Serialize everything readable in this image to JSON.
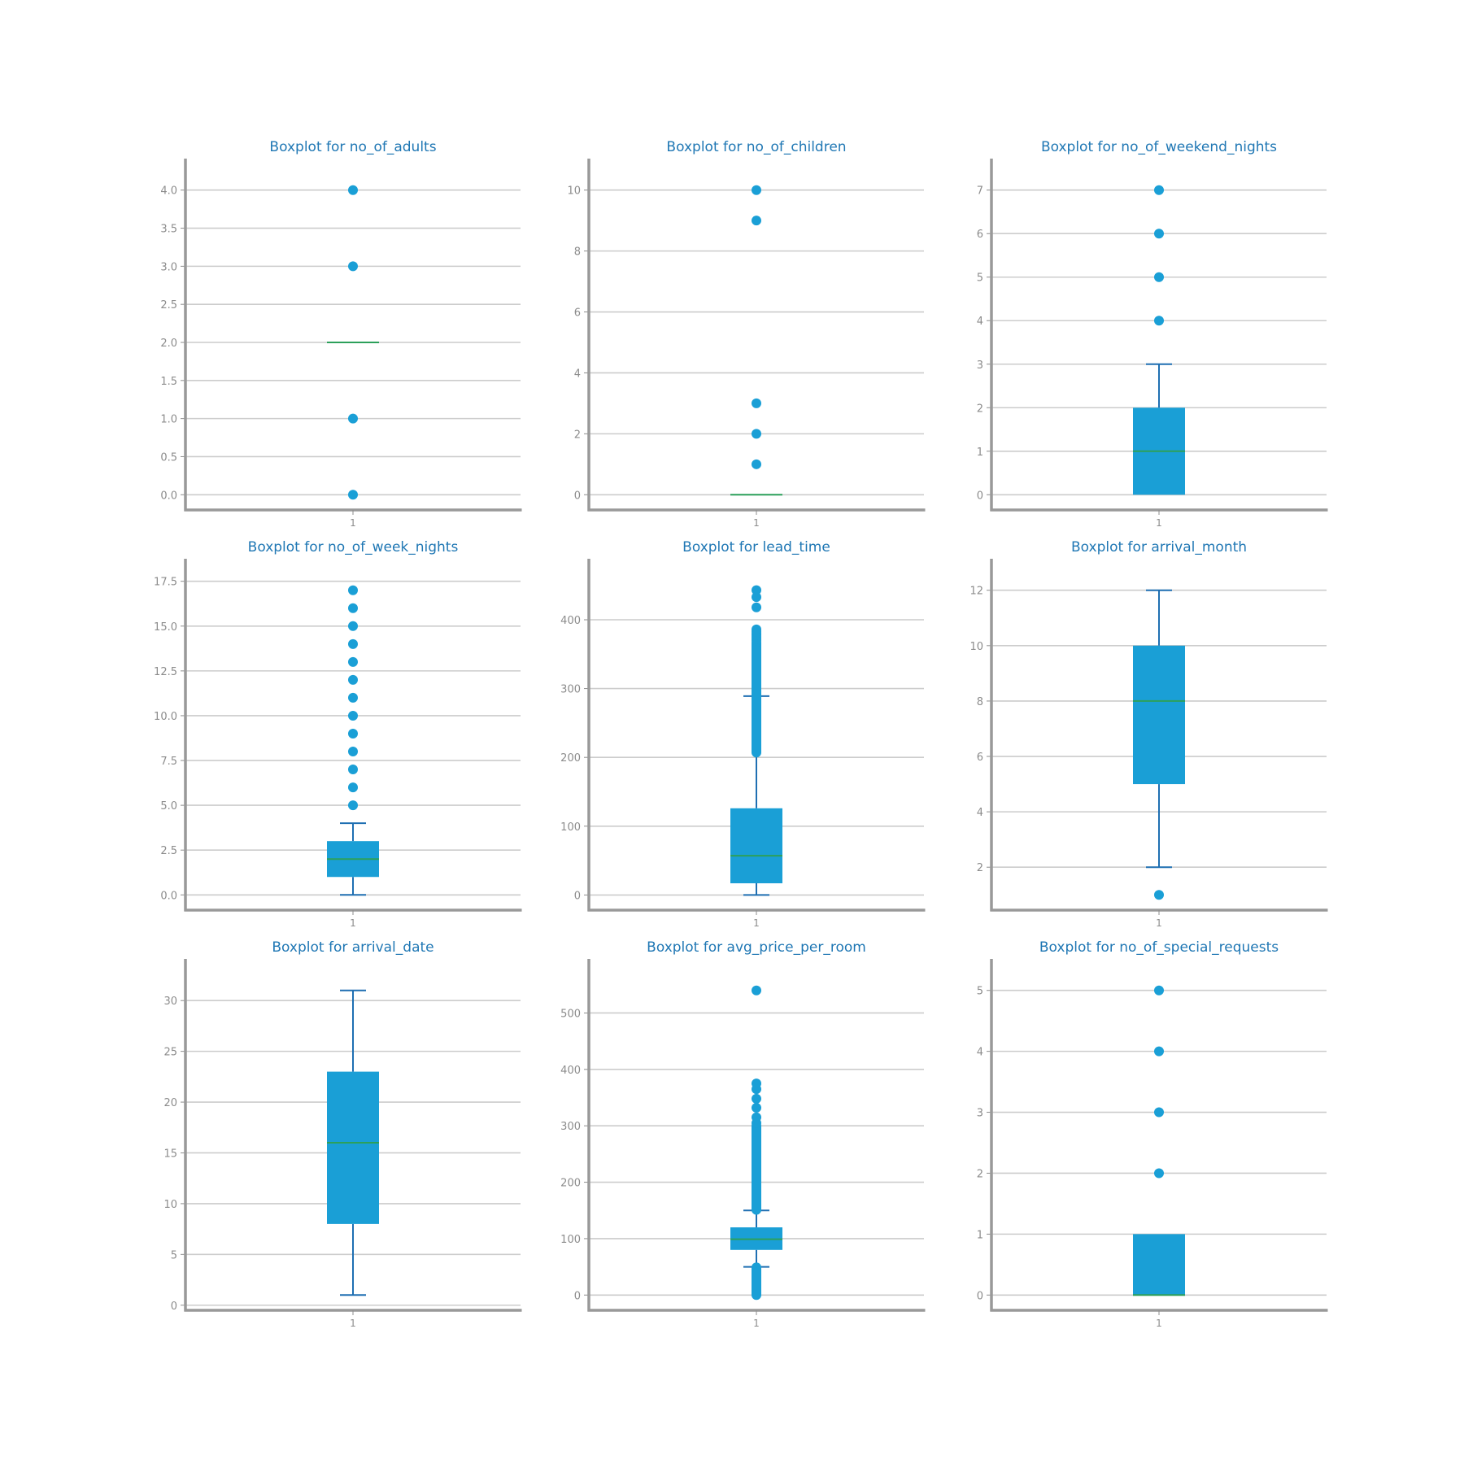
{
  "colors": {
    "title": "#1a72b8",
    "box": "#1a9fd6",
    "whisker": "#1f6fb2",
    "median": "#2ca05a",
    "grid": "#cccccc",
    "spine": "#999999",
    "tick_label": "#8c8c8c"
  },
  "chart_data": [
    {
      "type": "boxplot",
      "title": "Boxplot for no_of_adults",
      "category": "1",
      "ylim": [
        -0.2,
        4.2
      ],
      "yticks": [
        0.0,
        0.5,
        1.0,
        1.5,
        2.0,
        2.5,
        3.0,
        3.5,
        4.0
      ],
      "ytick_labels": [
        "0.0",
        "0.5",
        "1.0",
        "1.5",
        "2.0",
        "2.5",
        "3.0",
        "3.5",
        "4.0"
      ],
      "grid": true,
      "whisker_low": 2,
      "q1": 2,
      "median": 2,
      "q3": 2,
      "whisker_high": 2,
      "outliers": [
        0,
        1,
        3,
        4
      ]
    },
    {
      "type": "boxplot",
      "title": "Boxplot for no_of_children",
      "category": "1",
      "ylim": [
        -0.5,
        10.5
      ],
      "yticks": [
        0,
        2,
        4,
        6,
        8,
        10
      ],
      "ytick_labels": [
        "0",
        "2",
        "4",
        "6",
        "8",
        "10"
      ],
      "grid": true,
      "whisker_low": 0,
      "q1": 0,
      "median": 0,
      "q3": 0,
      "whisker_high": 0,
      "outliers": [
        1,
        2,
        3,
        9,
        10
      ]
    },
    {
      "type": "boxplot",
      "title": "Boxplot for no_of_weekend_nights",
      "category": "1",
      "ylim": [
        -0.35,
        7.35
      ],
      "yticks": [
        0,
        1,
        2,
        3,
        4,
        5,
        6,
        7
      ],
      "ytick_labels": [
        "0",
        "1",
        "2",
        "3",
        "4",
        "5",
        "6",
        "7"
      ],
      "grid": true,
      "whisker_low": 0,
      "q1": 0,
      "median": 1,
      "q3": 2,
      "whisker_high": 3,
      "outliers": [
        4,
        5,
        6,
        7
      ]
    },
    {
      "type": "boxplot",
      "title": "Boxplot for no_of_week_nights",
      "category": "1",
      "ylim": [
        -0.85,
        17.85
      ],
      "yticks": [
        0.0,
        2.5,
        5.0,
        7.5,
        10.0,
        12.5,
        15.0,
        17.5
      ],
      "ytick_labels": [
        "0.0",
        "2.5",
        "5.0",
        "7.5",
        "10.0",
        "12.5",
        "15.0",
        "17.5"
      ],
      "grid": true,
      "whisker_low": 0,
      "q1": 1,
      "median": 2,
      "q3": 3,
      "whisker_high": 4,
      "outliers": [
        5,
        6,
        7,
        8,
        9,
        10,
        11,
        12,
        13,
        14,
        15,
        16,
        17
      ]
    },
    {
      "type": "boxplot",
      "title": "Boxplot for lead_time",
      "category": "1",
      "ylim": [
        -22,
        465
      ],
      "yticks": [
        0,
        100,
        200,
        300,
        400
      ],
      "ytick_labels": [
        "0",
        "100",
        "200",
        "300",
        "400"
      ],
      "grid": true,
      "whisker_low": 0,
      "q1": 17,
      "median": 57,
      "q3": 126,
      "whisker_high": 289,
      "outliers_dense_range": [
        207,
        365
      ],
      "outliers": [
        367,
        370,
        372,
        375,
        378,
        380,
        383,
        386,
        418,
        433,
        443
      ]
    },
    {
      "type": "boxplot",
      "title": "Boxplot for arrival_month",
      "category": "1",
      "ylim": [
        0.45,
        12.55
      ],
      "yticks": [
        2,
        4,
        6,
        8,
        10,
        12
      ],
      "ytick_labels": [
        "2",
        "4",
        "6",
        "8",
        "10",
        "12"
      ],
      "grid": true,
      "whisker_low": 2,
      "q1": 5,
      "median": 8,
      "q3": 10,
      "whisker_high": 12,
      "outliers": [
        1
      ]
    },
    {
      "type": "boxplot",
      "title": "Boxplot for arrival_date",
      "category": "1",
      "ylim": [
        -0.5,
        32.5
      ],
      "yticks": [
        0,
        5,
        10,
        15,
        20,
        25,
        30
      ],
      "ytick_labels": [
        "0",
        "5",
        "10",
        "15",
        "20",
        "25",
        "30"
      ],
      "grid": true,
      "whisker_low": 1,
      "q1": 8,
      "median": 16,
      "q3": 23,
      "whisker_high": 31,
      "outliers": []
    },
    {
      "type": "boxplot",
      "title": "Boxplot for avg_price_per_room",
      "category": "1",
      "ylim": [
        -27,
        567
      ],
      "yticks": [
        0,
        100,
        200,
        300,
        400,
        500
      ],
      "ytick_labels": [
        "0",
        "100",
        "200",
        "300",
        "400",
        "500"
      ],
      "grid": true,
      "whisker_low": 50,
      "q1": 80,
      "median": 99,
      "q3": 120,
      "whisker_high": 150,
      "outliers_dense_range": [
        151,
        300
      ],
      "outliers_dense_range_low": [
        0,
        49
      ],
      "outliers": [
        305,
        315,
        332,
        348,
        365,
        375,
        540
      ]
    },
    {
      "type": "boxplot",
      "title": "Boxplot for no_of_special_requests",
      "category": "1",
      "ylim": [
        -0.25,
        5.25
      ],
      "yticks": [
        0,
        1,
        2,
        3,
        4,
        5
      ],
      "ytick_labels": [
        "0",
        "1",
        "2",
        "3",
        "4",
        "5"
      ],
      "grid": true,
      "whisker_low": 0,
      "q1": 0,
      "median": 0,
      "q3": 1,
      "whisker_high": 1,
      "outliers": [
        2,
        3,
        4,
        5
      ]
    }
  ]
}
